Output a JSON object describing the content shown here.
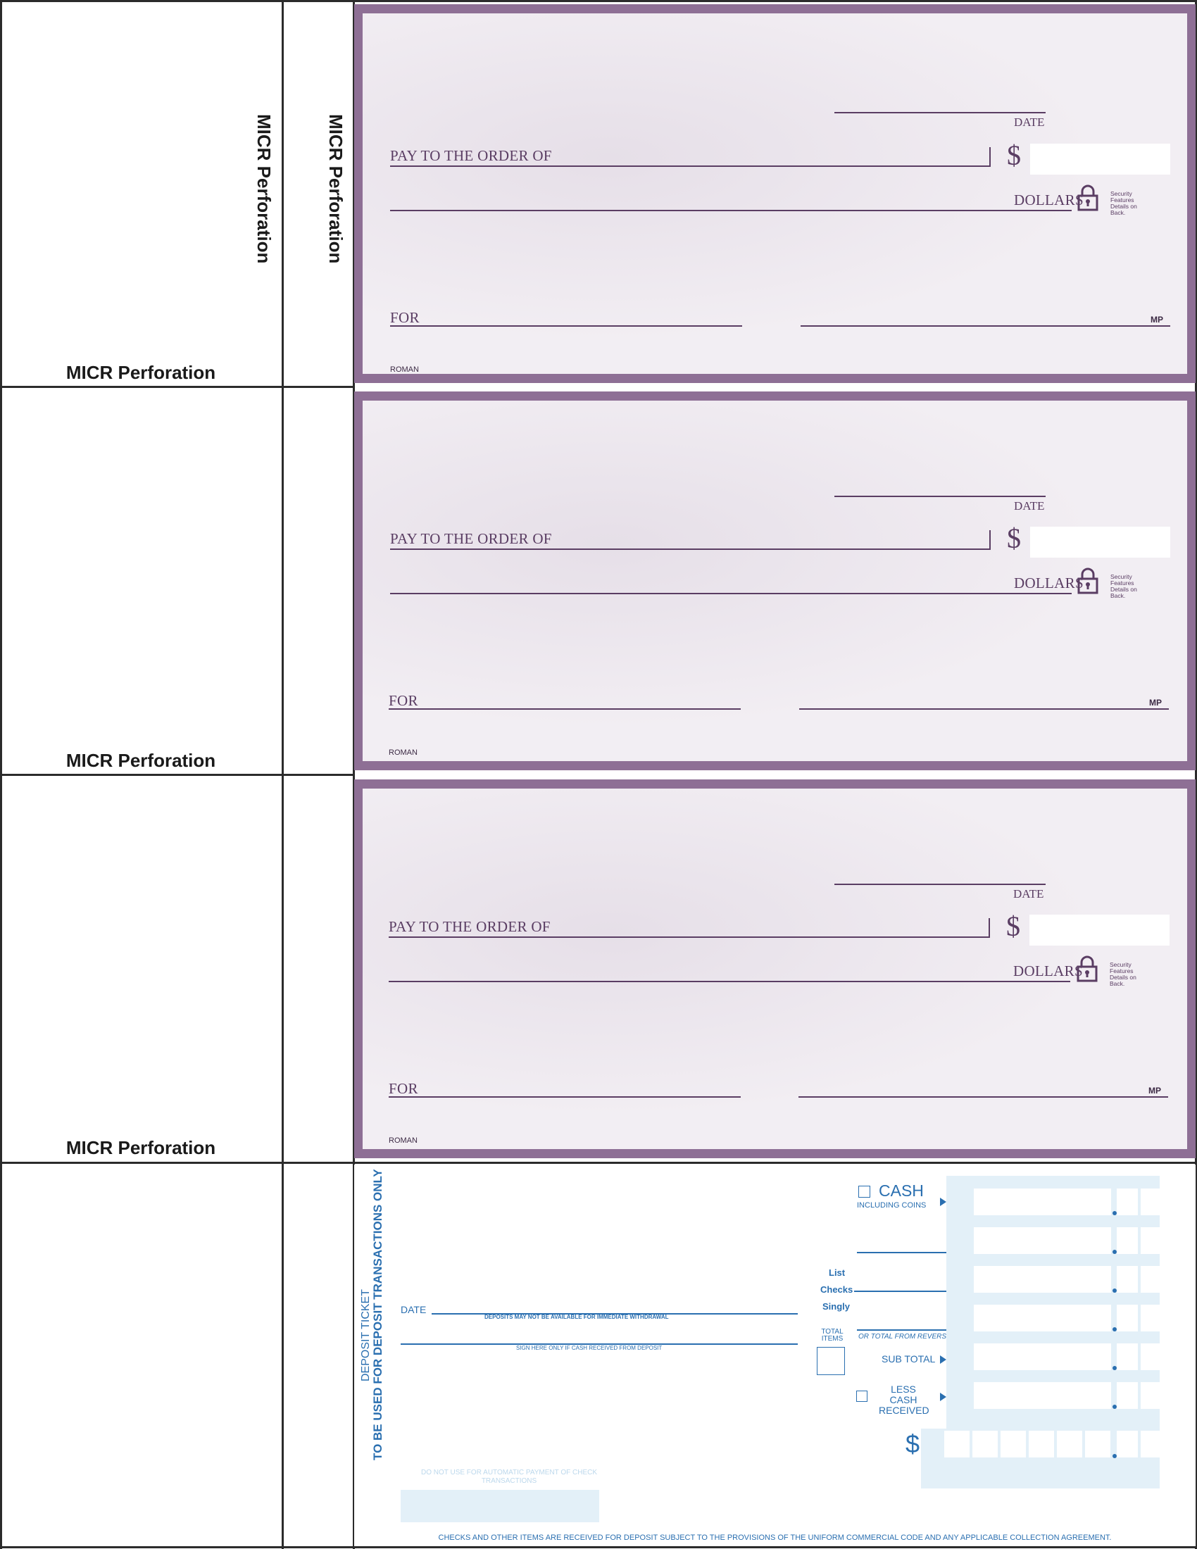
{
  "margin_labels": {
    "micr_1": "MICR Perforation",
    "micr_2": "MICR Perforation",
    "micr_3": "MICR Perforation",
    "micr_vertical_1": "MICR Perforation",
    "micr_vertical_2": "MICR Perforation"
  },
  "checks": [
    {
      "date": "DATE",
      "pay_to": "PAY TO THE ORDER OF",
      "dollar": "$",
      "dollars": "DOLLARS",
      "security": "Security Features Details on Back.",
      "for": "FOR",
      "mp": "MP",
      "style": "ROMAN"
    },
    {
      "date": "DATE",
      "pay_to": "PAY TO THE ORDER OF",
      "dollar": "$",
      "dollars": "DOLLARS",
      "security": "Security Features Details on Back.",
      "for": "FOR",
      "mp": "MP",
      "style": "ROMAN"
    },
    {
      "date": "DATE",
      "pay_to": "PAY TO THE ORDER OF",
      "dollar": "$",
      "dollars": "DOLLARS",
      "security": "Security Features Details on Back.",
      "for": "FOR",
      "mp": "MP",
      "style": "ROMAN"
    }
  ],
  "deposit": {
    "vertical_title": "TO BE USED FOR DEPOSIT TRANSACTIONS ONLY",
    "vertical_subtitle": "DEPOSIT TICKET",
    "date_label": "DATE",
    "availability_notice": "DEPOSITS MAY NOT BE AVAILABLE FOR IMMEDIATE WITHDRAWAL",
    "sign_notice": "SIGN HERE ONLY IF CASH RECEIVED FROM DEPOSIT",
    "cash_label": "CASH",
    "cash_sub": "INCLUDING COINS",
    "list_checks_1": "List",
    "list_checks_2": "Checks",
    "list_checks_3": "Singly",
    "total_items": "TOTAL ITEMS",
    "or_total": "OR TOTAL FROM REVERSE",
    "sub_total": "SUB TOTAL",
    "less_cash": "LESS CASH RECEIVED",
    "dollar": "$",
    "do_not_use": "DO NOT USE FOR AUTOMATIC PAYMENT OF CHECK TRANSACTIONS",
    "footer": "CHECKS AND OTHER ITEMS ARE RECEIVED FOR DEPOSIT SUBJECT TO THE PROVISIONS OF THE UNIFORM COMMERCIAL CODE AND ANY APPLICABLE COLLECTION AGREEMENT."
  },
  "colors": {
    "check_border": "#8e6f95",
    "check_face": "#ede7ee",
    "check_ink": "#5a3d63",
    "deposit_ink": "#2a6fb0",
    "grid_fill": "#e3f0f8"
  }
}
